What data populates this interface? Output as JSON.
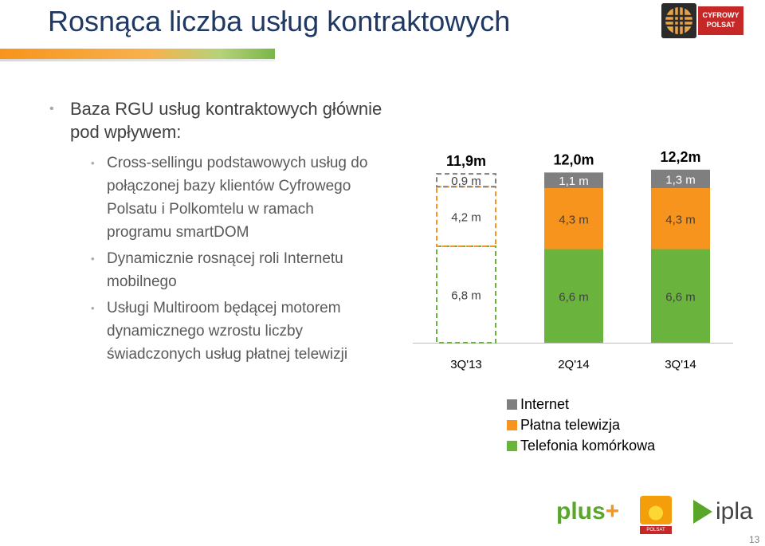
{
  "title": "Rosnąca liczba usług kontraktowych",
  "brand_logo": {
    "text": "CYFROWY POLSAT",
    "color": "#c62828"
  },
  "bullets": {
    "main": "Baza RGU usług kontraktowych głównie pod wpływem:",
    "sub": [
      "Cross-sellingu podstawowych usług  do połączonej bazy klientów Cyfrowego Polsatu i Polkomtelu w ramach programu smartDOM",
      "Dynamicznie rosnącej roli Internetu mobilnego",
      "Usługi Multiroom będącej motorem dynamicznego wzrostu liczby świadczonych usług płatnej telewizji"
    ]
  },
  "chart_data": {
    "type": "bar",
    "stacked": true,
    "categories": [
      "3Q'13",
      "2Q'14",
      "3Q'14"
    ],
    "totals": [
      "11,9m",
      "12,0m",
      "12,2m"
    ],
    "series": [
      {
        "name": "Telefonia komórkowa",
        "values": [
          6.8,
          6.6,
          6.6
        ],
        "labels": [
          "6,8 m",
          "6,6 m",
          "6,6 m"
        ],
        "color": "#6ab43e"
      },
      {
        "name": "Płatna telewizja",
        "values": [
          4.2,
          4.3,
          4.3
        ],
        "labels": [
          "4,2 m",
          "4,3 m",
          "4,3 m"
        ],
        "color": "#f7941d"
      },
      {
        "name": "Internet",
        "values": [
          0.9,
          1.1,
          1.3
        ],
        "labels": [
          "0,9 m",
          "1,1 m",
          "1,3 m"
        ],
        "color": "#7f7f7f"
      }
    ],
    "first_bar_style": "dashed-outline",
    "legend_position": "bottom",
    "grid": false
  },
  "legend_items": [
    {
      "label": "Internet",
      "color": "#7f7f7f"
    },
    {
      "label": "Płatna telewizja",
      "color": "#f7941d"
    },
    {
      "label": "Telefonia komórkowa",
      "color": "#6ab43e"
    }
  ],
  "footer_logos": {
    "plus": "plus",
    "polsat": "POLSAT",
    "ipla": "ipla"
  },
  "page_number": "13"
}
